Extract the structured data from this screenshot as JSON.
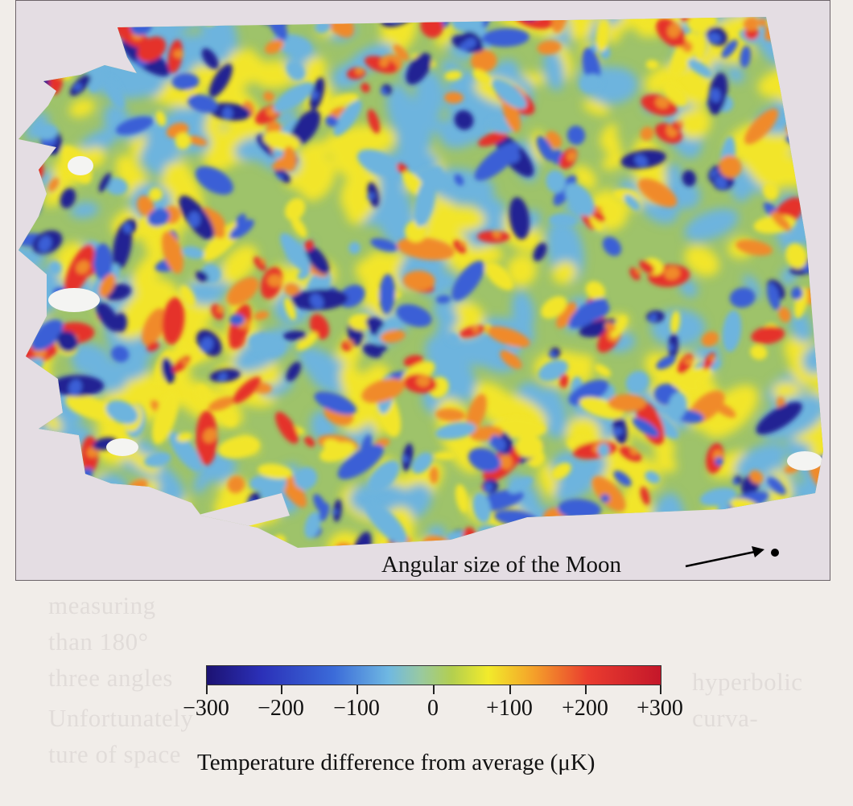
{
  "figure": {
    "annotation": "Angular size of the Moon",
    "colorbar": {
      "ticks": [
        "−300",
        "−200",
        "−100",
        "0",
        "+100",
        "+200",
        "+300"
      ],
      "title": "Temperature difference from average (μK)",
      "colors": [
        "#1c1272",
        "#2b30b8",
        "#3b6bd9",
        "#6fb8e2",
        "#98c9a2",
        "#b3cf4f",
        "#f2eb2b",
        "#f4a12a",
        "#ea3c2f",
        "#c4172a"
      ]
    }
  }
}
